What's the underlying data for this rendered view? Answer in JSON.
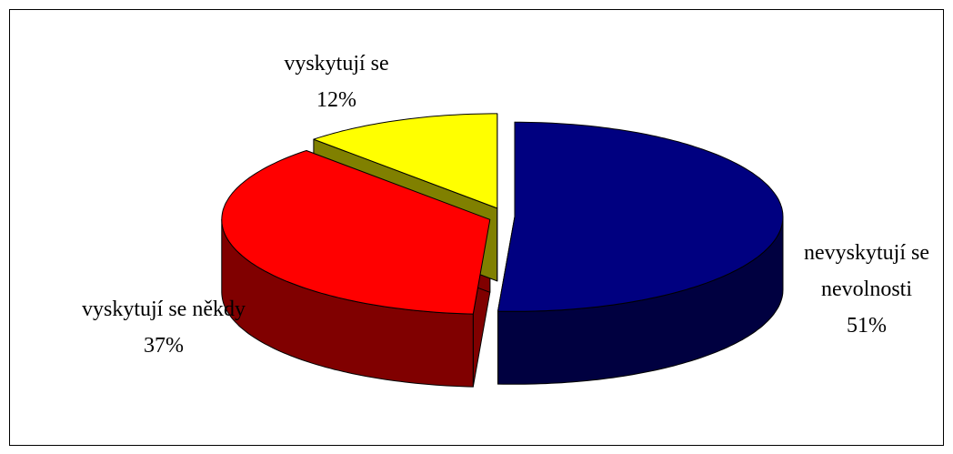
{
  "chart_data": {
    "type": "pie3d",
    "categories": [
      "nevyskytují se nevolnosti",
      "vyskytují se někdy",
      "vyskytují se"
    ],
    "values": [
      51,
      37,
      12
    ],
    "value_labels": [
      "51%",
      "37%",
      "12%"
    ],
    "colors": [
      "#000080",
      "#ff0000",
      "#ffff00"
    ]
  }
}
